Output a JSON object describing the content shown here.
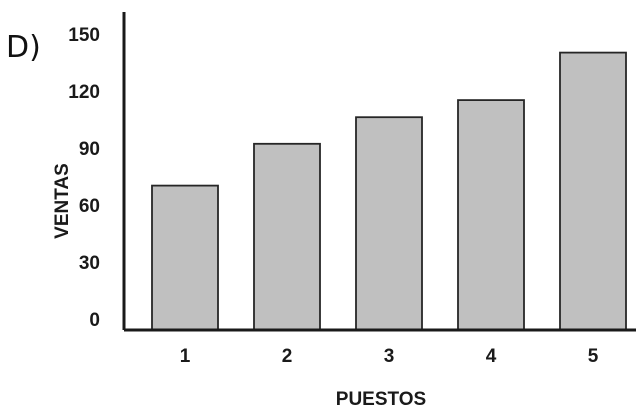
{
  "option_label": "D)",
  "colors": {
    "bar_fill": "#c0c0c0",
    "bar_stroke": "#262626",
    "axis": "#1a1a1a",
    "background": "#ffffff"
  },
  "chart_data": {
    "type": "bar",
    "categories": [
      "1",
      "2",
      "3",
      "4",
      "5"
    ],
    "values": [
      76,
      98,
      112,
      121,
      146
    ],
    "title": "",
    "xlabel": "PUESTOS",
    "ylabel": "VENTAS",
    "ylim": [
      0,
      165
    ],
    "yticks": [
      0,
      30,
      60,
      90,
      120,
      150
    ],
    "grid": false,
    "legend": "none"
  }
}
